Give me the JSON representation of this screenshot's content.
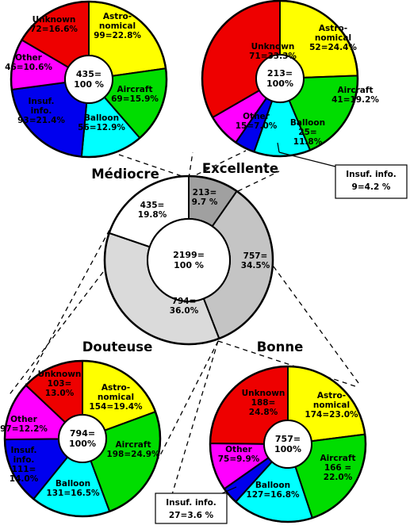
{
  "chart_data": [
    {
      "type": "pie",
      "id": "ring",
      "center_label": [
        "2199=",
        "100 %"
      ],
      "slices": [
        {
          "name": "Excellente",
          "count": 213,
          "percent": 9.7,
          "label": [
            "213=",
            "9.7 %"
          ],
          "color": "#a0a0a0"
        },
        {
          "name": "Bonne",
          "count": 757,
          "percent": 34.5,
          "label": [
            "757=",
            "34.5%"
          ],
          "color": "#c4c4c4"
        },
        {
          "name": "Douteuse",
          "count": 794,
          "percent": 36.0,
          "label": [
            "794=",
            "36.0%"
          ],
          "color": "#dadada"
        },
        {
          "name": "Médiocre",
          "count": 435,
          "percent": 19.8,
          "label": [
            "435=",
            "19.8%"
          ],
          "color": "#ffffff"
        }
      ]
    },
    {
      "type": "pie",
      "id": "mediocre",
      "title": "Médiocre",
      "center_label": [
        "435=",
        "100 %"
      ],
      "slices": [
        {
          "name": "Astronomical",
          "count": 99,
          "percent": 22.8,
          "label": [
            "Astro-",
            "nomical",
            "99=22.8%"
          ],
          "color": "#ffff00"
        },
        {
          "name": "Aircraft",
          "count": 69,
          "percent": 15.9,
          "label": [
            "Aircraft",
            "69=15.9%"
          ],
          "color": "#00dd00"
        },
        {
          "name": "Balloon",
          "count": 56,
          "percent": 12.9,
          "label": [
            "Balloon",
            "56=12.9%"
          ],
          "color": "#00ffff"
        },
        {
          "name": "Insuf. info.",
          "count": 93,
          "percent": 21.4,
          "label": [
            "Insuf.",
            "info.",
            "93=21.4%"
          ],
          "color": "#0000ee"
        },
        {
          "name": "Other",
          "count": 46,
          "percent": 10.6,
          "label": [
            "Other",
            "46=10.6%"
          ],
          "color": "#ff00ff"
        },
        {
          "name": "Unknown",
          "count": 72,
          "percent": 16.6,
          "label": [
            "Unknown",
            "72=16.6%"
          ],
          "color": "#ee0000"
        }
      ]
    },
    {
      "type": "pie",
      "id": "excellente",
      "title": "Excellente",
      "center_label": [
        "213=",
        "100%"
      ],
      "slices": [
        {
          "name": "Astronomical",
          "count": 52,
          "percent": 24.4,
          "label": [
            "Astro-",
            "nomical",
            "52=24.4%"
          ],
          "color": "#ffff00"
        },
        {
          "name": "Aircraft",
          "count": 41,
          "percent": 19.2,
          "label": [
            "Aircraft",
            "41=19.2%"
          ],
          "color": "#00dd00"
        },
        {
          "name": "Balloon",
          "count": 25,
          "percent": 11.8,
          "label": [
            "Balloon",
            "25=",
            "11.8%"
          ],
          "color": "#00ffff"
        },
        {
          "name": "Insuf. info.",
          "count": 9,
          "percent": 4.2,
          "label": [],
          "color": "#0000ee"
        },
        {
          "name": "Other",
          "count": 15,
          "percent": 7.0,
          "label": [
            "Other",
            "15=7.0%"
          ],
          "color": "#ff00ff"
        },
        {
          "name": "Unknown",
          "count": 71,
          "percent": 33.3,
          "label": [
            "Unknown",
            "71=33.3%"
          ],
          "color": "#ee0000"
        }
      ],
      "callout": [
        "Insuf. info.",
        "9=4.2 %"
      ]
    },
    {
      "type": "pie",
      "id": "douteuse",
      "title": "Douteuse",
      "center_label": [
        "794=",
        "100%"
      ],
      "slices": [
        {
          "name": "Astronomical",
          "count": 154,
          "percent": 19.4,
          "label": [
            "Astro-",
            "nomical",
            "154=19.4%"
          ],
          "color": "#ffff00"
        },
        {
          "name": "Aircraft",
          "count": 198,
          "percent": 24.9,
          "label": [
            "Aircraft",
            "198=24.9%"
          ],
          "color": "#00dd00"
        },
        {
          "name": "Balloon",
          "count": 131,
          "percent": 16.5,
          "label": [
            "Balloon",
            "131=16.5%"
          ],
          "color": "#00ffff"
        },
        {
          "name": "Insuf. info.",
          "count": 111,
          "percent": 14.0,
          "label": [
            "Insuf.",
            "info.",
            "111=",
            "14.0%"
          ],
          "color": "#0000ee"
        },
        {
          "name": "Other",
          "count": 97,
          "percent": 12.2,
          "label": [
            "Other",
            "97=12.2%"
          ],
          "color": "#ff00ff"
        },
        {
          "name": "Unknown",
          "count": 103,
          "percent": 13.0,
          "label": [
            "Unknown",
            "103=",
            "13.0%"
          ],
          "color": "#ee0000"
        }
      ]
    },
    {
      "type": "pie",
      "id": "bonne",
      "title": "Bonne",
      "center_label": [
        "757=",
        "100%"
      ],
      "slices": [
        {
          "name": "Astronomical",
          "count": 174,
          "percent": 23.0,
          "label": [
            "Astro-",
            "nomical",
            "174=23.0%"
          ],
          "color": "#ffff00"
        },
        {
          "name": "Aircraft",
          "count": 166,
          "percent": 22.0,
          "label": [
            "Aircraft",
            "166 =",
            "22.0%"
          ],
          "color": "#00dd00"
        },
        {
          "name": "Balloon",
          "count": 127,
          "percent": 16.8,
          "label": [
            "Balloon",
            "127=16.8%"
          ],
          "color": "#00ffff"
        },
        {
          "name": "Insuf. info.",
          "count": 27,
          "percent": 3.6,
          "label": [],
          "color": "#0000ee"
        },
        {
          "name": "Other",
          "count": 75,
          "percent": 9.9,
          "label": [
            "Other",
            "75=9.9%"
          ],
          "color": "#ff00ff"
        },
        {
          "name": "Unknown",
          "count": 188,
          "percent": 24.8,
          "label": [
            "Unknown",
            "188=",
            "24.8%"
          ],
          "color": "#ee0000"
        }
      ],
      "callout": [
        "Insuf. info.",
        "27=3.6 %"
      ]
    }
  ]
}
